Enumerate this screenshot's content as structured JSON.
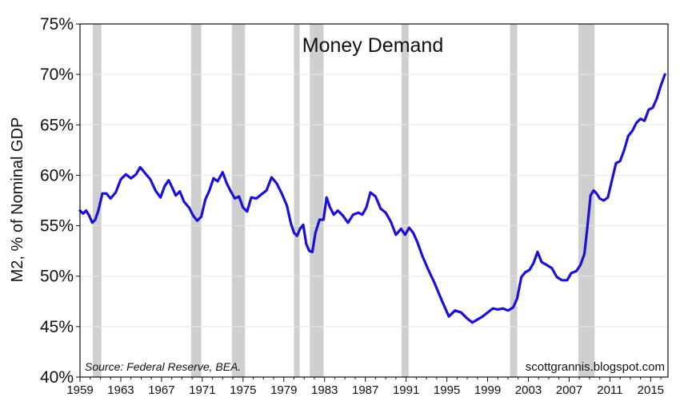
{
  "colors": {
    "line": "#1a10d6",
    "recession": "#cfcfcf",
    "grid": "#e6e6e6",
    "axis": "#111111"
  },
  "chart_data": {
    "type": "line",
    "title": "Money Demand",
    "ylabel": "M2, % of Nominal GDP",
    "xlabel": "",
    "source": "Source: Federal Reserve, BEA.",
    "credit": "scottgrannis.blogspot.com",
    "xlim": [
      1959,
      2016.7
    ],
    "ylim": [
      40,
      75
    ],
    "y_ticks": [
      40,
      45,
      50,
      55,
      60,
      65,
      70,
      75
    ],
    "y_tick_labels": [
      "40%",
      "45%",
      "50%",
      "55%",
      "60%",
      "65%",
      "70%",
      "75%"
    ],
    "x_ticks": [
      1959,
      1963,
      1967,
      1971,
      1975,
      1979,
      1983,
      1987,
      1991,
      1995,
      1999,
      2003,
      2007,
      2011,
      2015
    ],
    "x_tick_labels": [
      "1959",
      "1963",
      "1967",
      "1971",
      "1975",
      "1979",
      "1983",
      "1987",
      "1991",
      "1995",
      "1999",
      "2003",
      "2007",
      "2011",
      "2015"
    ],
    "grid": true,
    "recessions": [
      [
        1960.25,
        1961.1
      ],
      [
        1969.9,
        1970.9
      ],
      [
        1973.9,
        1975.2
      ],
      [
        1980.0,
        1980.55
      ],
      [
        1981.55,
        1982.9
      ],
      [
        1990.55,
        1991.25
      ],
      [
        2001.2,
        2001.9
      ],
      [
        2007.9,
        2009.5
      ]
    ],
    "series": [
      {
        "name": "",
        "x": [
          1959.0,
          1959.3,
          1959.6,
          1959.9,
          1960.2,
          1960.5,
          1960.8,
          1961.2,
          1961.6,
          1962.0,
          1962.5,
          1963.0,
          1963.5,
          1964.0,
          1964.5,
          1964.9,
          1965.4,
          1965.9,
          1966.4,
          1966.9,
          1967.3,
          1967.7,
          1968.0,
          1968.4,
          1968.8,
          1969.2,
          1969.7,
          1970.1,
          1970.5,
          1970.9,
          1971.3,
          1971.7,
          1972.1,
          1972.5,
          1973.0,
          1973.4,
          1973.8,
          1974.2,
          1974.6,
          1975.0,
          1975.4,
          1975.8,
          1976.3,
          1976.8,
          1977.3,
          1977.8,
          1978.3,
          1978.8,
          1979.3,
          1979.7,
          1980.0,
          1980.3,
          1980.6,
          1980.9,
          1981.2,
          1981.5,
          1981.8,
          1982.1,
          1982.5,
          1982.9,
          1983.2,
          1983.5,
          1983.9,
          1984.3,
          1984.8,
          1985.3,
          1985.8,
          1986.3,
          1986.7,
          1987.1,
          1987.5,
          1988.0,
          1988.5,
          1989.0,
          1989.5,
          1990.0,
          1990.5,
          1990.9,
          1991.3,
          1991.7,
          1992.1,
          1992.6,
          1993.2,
          1993.8,
          1994.5,
          1995.2,
          1995.8,
          1996.4,
          1997.0,
          1997.5,
          1998.0,
          1998.5,
          1999.0,
          1999.5,
          2000.0,
          2000.5,
          2001.0,
          2001.5,
          2001.9,
          2002.3,
          2002.7,
          2003.1,
          2003.5,
          2003.9,
          2004.3,
          2004.8,
          2005.3,
          2005.8,
          2006.3,
          2006.8,
          2007.2,
          2007.7,
          2008.1,
          2008.5,
          2008.8,
          2009.1,
          2009.4,
          2009.7,
          2010.0,
          2010.4,
          2010.8,
          2011.2,
          2011.6,
          2012.0,
          2012.4,
          2012.8,
          2013.2,
          2013.6,
          2014.0,
          2014.4,
          2014.8,
          2015.2,
          2015.6,
          2016.0,
          2016.4
        ],
        "values": [
          56.5,
          56.2,
          56.5,
          56.0,
          55.3,
          55.6,
          56.5,
          58.2,
          58.2,
          57.7,
          58.3,
          59.6,
          60.1,
          59.7,
          60.1,
          60.8,
          60.2,
          59.6,
          58.5,
          57.8,
          58.9,
          59.5,
          58.9,
          58.0,
          58.4,
          57.4,
          56.8,
          56.0,
          55.5,
          55.9,
          57.6,
          58.5,
          59.7,
          59.4,
          60.3,
          59.2,
          58.4,
          57.7,
          57.9,
          56.8,
          56.4,
          57.8,
          57.7,
          58.1,
          58.5,
          59.8,
          59.2,
          58.2,
          57.0,
          55.2,
          54.3,
          54.0,
          54.7,
          55.1,
          53.2,
          52.5,
          52.4,
          54.3,
          55.6,
          55.6,
          57.8,
          56.9,
          56.1,
          56.5,
          56.0,
          55.3,
          56.1,
          56.3,
          56.1,
          56.8,
          58.3,
          57.9,
          56.7,
          56.3,
          55.4,
          54.1,
          54.7,
          54.1,
          54.8,
          54.3,
          53.4,
          52.0,
          50.6,
          49.3,
          47.6,
          46.0,
          46.6,
          46.4,
          45.8,
          45.4,
          45.7,
          46.0,
          46.4,
          46.8,
          46.7,
          46.8,
          46.6,
          46.9,
          47.8,
          49.9,
          50.4,
          50.6,
          51.3,
          52.4,
          51.4,
          51.1,
          50.8,
          49.9,
          49.6,
          49.6,
          50.3,
          50.5,
          51.1,
          52.2,
          55.0,
          58.0,
          58.5,
          58.2,
          57.7,
          57.5,
          57.8,
          59.5,
          61.2,
          61.4,
          62.5,
          63.9,
          64.4,
          65.2,
          65.6,
          65.4,
          66.5,
          66.7,
          67.6,
          68.9,
          70.0
        ]
      }
    ]
  }
}
